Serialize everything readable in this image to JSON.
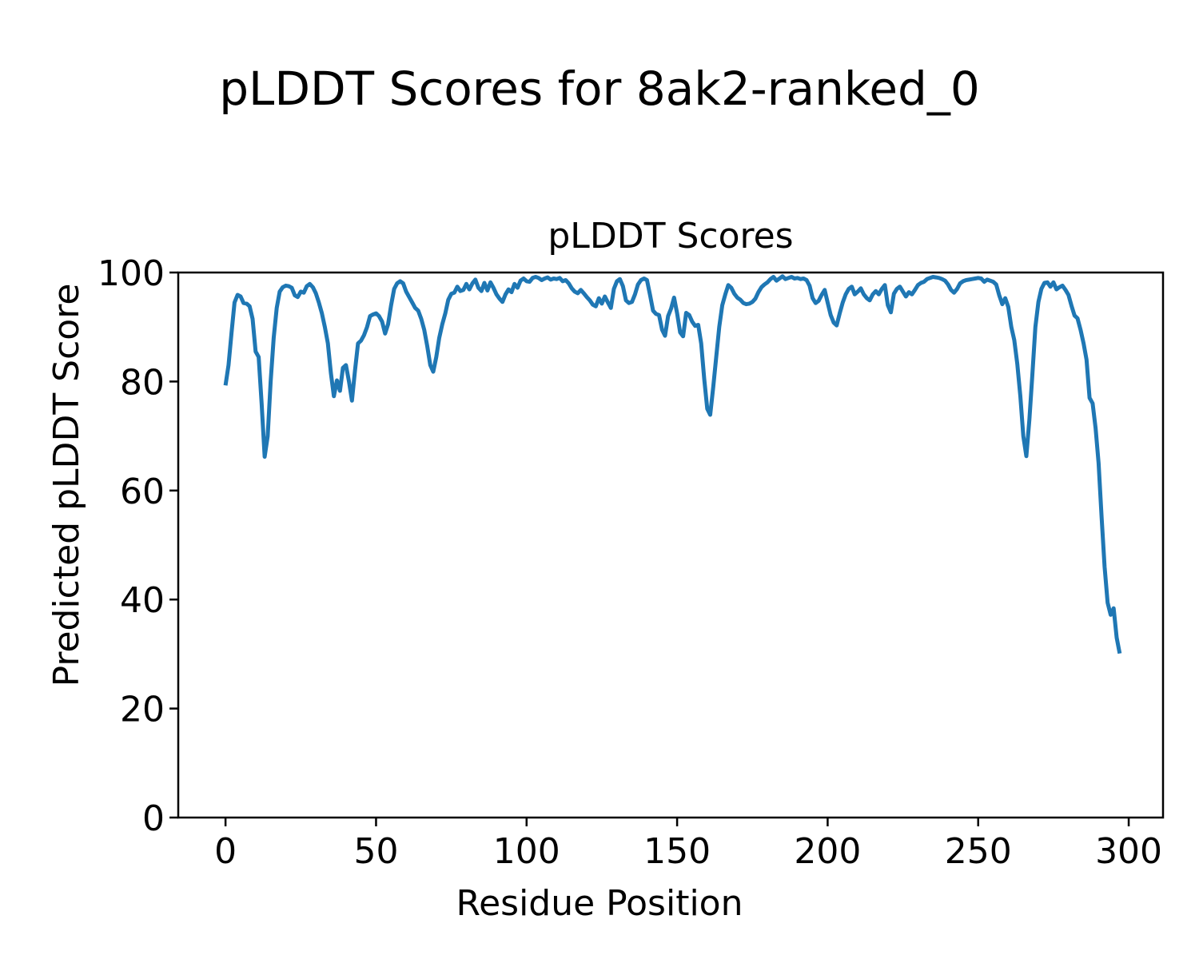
{
  "figure_title": "pLDDT Scores for 8ak2-ranked_0",
  "chart_data": {
    "type": "line",
    "title": "pLDDT Scores",
    "xlabel": "Residue Position",
    "ylabel": "Predicted pLDDT Score",
    "xlim": [
      -15.7,
      311.4
    ],
    "ylim": [
      0,
      100
    ],
    "xticks": [
      0,
      50,
      100,
      150,
      200,
      250,
      300
    ],
    "yticks": [
      0,
      20,
      40,
      60,
      80,
      100
    ],
    "grid": false,
    "line_color": "#1f77b4",
    "line_width": 5,
    "series": [
      {
        "name": "pLDDT",
        "x_start": 0,
        "x_step": 1,
        "y": [
          79.3,
          83.0,
          89.0,
          94.5,
          95.9,
          95.6,
          94.4,
          94.3,
          93.8,
          91.5,
          85.5,
          84.5,
          76.0,
          66.2,
          70.0,
          80.0,
          88.0,
          93.5,
          96.5,
          97.3,
          97.6,
          97.5,
          97.2,
          95.8,
          95.5,
          96.5,
          96.3,
          97.5,
          97.9,
          97.3,
          96.2,
          94.5,
          92.5,
          90.0,
          87.0,
          81.5,
          77.3,
          80.2,
          78.3,
          82.5,
          83.0,
          80.0,
          76.5,
          82.0,
          87.0,
          87.5,
          88.5,
          90.0,
          92.0,
          92.3,
          92.5,
          92.0,
          91.0,
          88.8,
          90.5,
          94.0,
          97.0,
          98.0,
          98.4,
          98.0,
          96.5,
          95.5,
          94.5,
          93.5,
          93.0,
          91.5,
          89.5,
          86.5,
          83.0,
          81.8,
          84.5,
          88.0,
          90.5,
          92.5,
          95.0,
          96.1,
          96.3,
          97.4,
          96.6,
          96.8,
          97.9,
          96.9,
          98.0,
          98.7,
          97.2,
          96.6,
          98.1,
          96.7,
          98.2,
          97.2,
          96.0,
          95.2,
          94.6,
          96.0,
          96.9,
          96.4,
          97.9,
          97.2,
          98.5,
          98.9,
          98.4,
          98.3,
          99.0,
          99.2,
          99.0,
          98.6,
          98.9,
          99.1,
          98.7,
          98.9,
          98.8,
          99.0,
          98.4,
          98.6,
          98.0,
          97.1,
          96.5,
          96.2,
          96.8,
          96.2,
          95.5,
          94.9,
          94.1,
          93.8,
          95.3,
          94.3,
          95.6,
          94.5,
          93.5,
          97.0,
          98.4,
          98.8,
          97.5,
          94.9,
          94.4,
          94.6,
          96.0,
          97.8,
          98.6,
          98.9,
          98.6,
          95.9,
          93.0,
          92.4,
          92.2,
          89.5,
          88.4,
          92.0,
          93.4,
          95.4,
          92.5,
          89.0,
          88.3,
          92.6,
          92.2,
          91.0,
          90.2,
          90.4,
          87.0,
          80.5,
          75.0,
          73.9,
          79.0,
          84.6,
          90.0,
          94.0,
          96.0,
          97.7,
          97.2,
          96.1,
          95.4,
          95.0,
          94.4,
          94.2,
          94.3,
          94.6,
          95.2,
          96.4,
          97.3,
          97.8,
          98.2,
          98.8,
          99.2,
          98.5,
          98.9,
          99.3,
          98.8,
          99.0,
          99.2,
          98.9,
          99.0,
          98.8,
          98.9,
          98.6,
          97.6,
          95.3,
          94.4,
          94.8,
          95.9,
          96.8,
          94.5,
          92.2,
          90.8,
          90.3,
          92.5,
          94.5,
          96.0,
          97.0,
          97.4,
          96.0,
          96.5,
          97.1,
          96.0,
          95.3,
          94.9,
          96.0,
          96.6,
          96.0,
          97.0,
          97.7,
          94.0,
          92.7,
          96.1,
          97.0,
          97.4,
          96.5,
          95.6,
          96.4,
          96.0,
          96.8,
          97.7,
          98.1,
          98.3,
          98.8,
          99.0,
          99.2,
          99.1,
          99.0,
          98.8,
          98.5,
          97.8,
          96.8,
          96.3,
          97.0,
          98.0,
          98.4,
          98.6,
          98.7,
          98.8,
          98.9,
          99.0,
          98.9,
          98.3,
          98.7,
          98.5,
          98.3,
          97.8,
          95.8,
          94.2,
          95.3,
          93.7,
          90.0,
          87.6,
          83.2,
          77.3,
          70.0,
          66.3,
          73.0,
          81.2,
          90.0,
          94.6,
          97.0,
          98.1,
          98.2,
          97.4,
          98.2,
          96.9,
          97.3,
          97.6,
          96.8,
          95.9,
          93.9,
          92.1,
          91.6,
          89.5,
          87.0,
          84.0,
          77.0,
          76.0,
          71.5,
          65.0,
          55.0,
          46.0,
          39.4,
          37.2,
          38.4,
          33.0,
          30.1
        ]
      }
    ]
  }
}
